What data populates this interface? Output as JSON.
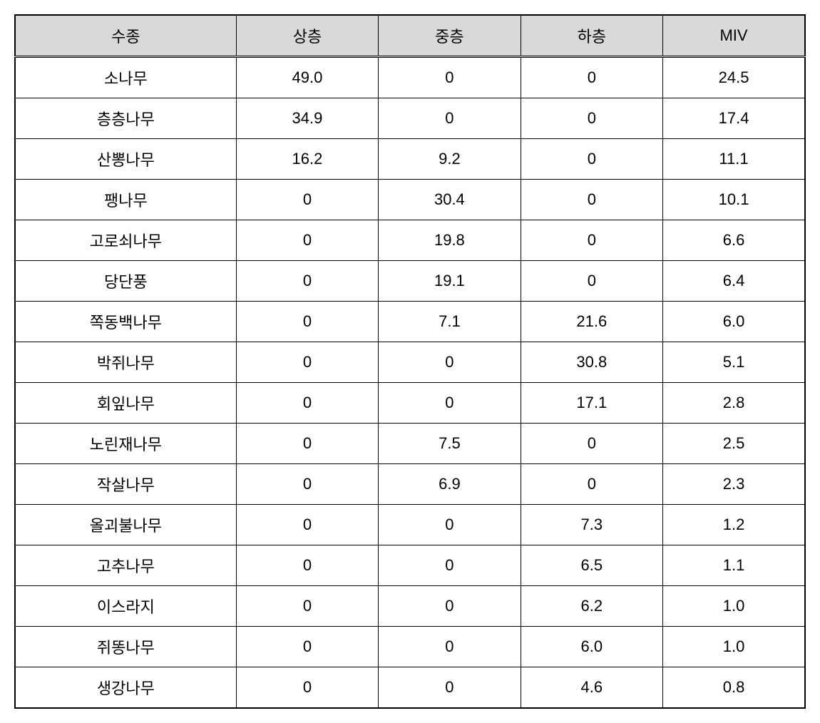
{
  "table": {
    "type": "table",
    "background_color": "#ffffff",
    "header_background_color": "#d9d9d9",
    "border_color": "#000000",
    "text_color": "#000000",
    "font_size": 22,
    "columns": [
      {
        "key": "species",
        "label": "수종",
        "width_pct": 28
      },
      {
        "key": "upper",
        "label": "상층",
        "width_pct": 18
      },
      {
        "key": "middle",
        "label": "중층",
        "width_pct": 18
      },
      {
        "key": "lower",
        "label": "하층",
        "width_pct": 18
      },
      {
        "key": "miv",
        "label": "MIV",
        "width_pct": 18
      }
    ],
    "rows": [
      {
        "species": "소나무",
        "upper": "49.0",
        "middle": "0",
        "lower": "0",
        "miv": "24.5"
      },
      {
        "species": "층층나무",
        "upper": "34.9",
        "middle": "0",
        "lower": "0",
        "miv": "17.4"
      },
      {
        "species": "산뽕나무",
        "upper": "16.2",
        "middle": "9.2",
        "lower": "0",
        "miv": "11.1"
      },
      {
        "species": "팽나무",
        "upper": "0",
        "middle": "30.4",
        "lower": "0",
        "miv": "10.1"
      },
      {
        "species": "고로쇠나무",
        "upper": "0",
        "middle": "19.8",
        "lower": "0",
        "miv": "6.6"
      },
      {
        "species": "당단풍",
        "upper": "0",
        "middle": "19.1",
        "lower": "0",
        "miv": "6.4"
      },
      {
        "species": "쪽동백나무",
        "upper": "0",
        "middle": "7.1",
        "lower": "21.6",
        "miv": "6.0"
      },
      {
        "species": "박쥐나무",
        "upper": "0",
        "middle": "0",
        "lower": "30.8",
        "miv": "5.1"
      },
      {
        "species": "회잎나무",
        "upper": "0",
        "middle": "0",
        "lower": "17.1",
        "miv": "2.8"
      },
      {
        "species": "노린재나무",
        "upper": "0",
        "middle": "7.5",
        "lower": "0",
        "miv": "2.5"
      },
      {
        "species": "작살나무",
        "upper": "0",
        "middle": "6.9",
        "lower": "0",
        "miv": "2.3"
      },
      {
        "species": "올괴불나무",
        "upper": "0",
        "middle": "0",
        "lower": "7.3",
        "miv": "1.2"
      },
      {
        "species": "고추나무",
        "upper": "0",
        "middle": "0",
        "lower": "6.5",
        "miv": "1.1"
      },
      {
        "species": "이스라지",
        "upper": "0",
        "middle": "0",
        "lower": "6.2",
        "miv": "1.0"
      },
      {
        "species": "쥐똥나무",
        "upper": "0",
        "middle": "0",
        "lower": "6.0",
        "miv": "1.0"
      },
      {
        "species": "생강나무",
        "upper": "0",
        "middle": "0",
        "lower": "4.6",
        "miv": "0.8"
      }
    ]
  }
}
